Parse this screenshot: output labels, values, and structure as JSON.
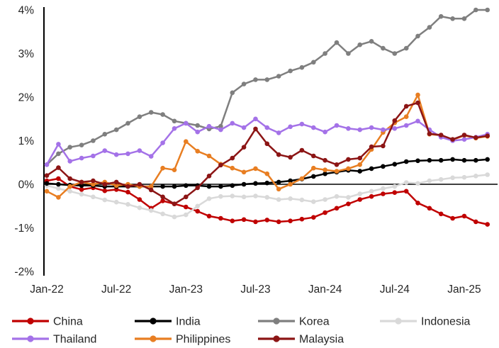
{
  "chart_data": {
    "type": "line",
    "title": "",
    "y_axis": {
      "unit": "%",
      "min": -2,
      "max": 4,
      "tick_values": [
        4,
        3,
        2,
        1,
        0,
        -1,
        -2
      ],
      "tick_labels": [
        "4%",
        "3%",
        "2%",
        "1%",
        "0%",
        "-1%",
        "-2%"
      ],
      "grid": "off",
      "zero_line": true
    },
    "x_axis": {
      "tick_labels": [
        "Jan-22",
        "Jul-22",
        "Jan-23",
        "Jul-23",
        "Jan-24",
        "Jul-24",
        "Jan-25"
      ],
      "tick_month_indices": [
        0,
        6,
        12,
        18,
        24,
        30,
        36
      ],
      "months": [
        "Jan-22",
        "Feb-22",
        "Mar-22",
        "Apr-22",
        "May-22",
        "Jun-22",
        "Jul-22",
        "Aug-22",
        "Sep-22",
        "Oct-22",
        "Nov-22",
        "Dec-22",
        "Jan-23",
        "Feb-23",
        "Mar-23",
        "Apr-23",
        "May-23",
        "Jun-23",
        "Jul-23",
        "Aug-23",
        "Sep-23",
        "Oct-23",
        "Nov-23",
        "Dec-23",
        "Jan-24",
        "Feb-24",
        "Mar-24",
        "Apr-24",
        "May-24",
        "Jun-24",
        "Jul-24",
        "Aug-24",
        "Sep-24",
        "Oct-24",
        "Nov-24",
        "Dec-24",
        "Jan-25",
        "Feb-25",
        "Mar-25"
      ]
    },
    "legend": {
      "position": "bottom",
      "rows": [
        [
          "China",
          "India",
          "Korea",
          "Indonesia"
        ],
        [
          "Thailand",
          "Philippines",
          "Malaysia"
        ]
      ]
    },
    "draw_order": [
      "China",
      "Indonesia",
      "India",
      "Philippines",
      "Korea",
      "Thailand",
      "Malaysia"
    ],
    "series": [
      {
        "name": "China",
        "color": "#c00000",
        "values": [
          0.08,
          0.13,
          -0.05,
          -0.12,
          -0.08,
          -0.15,
          -0.12,
          -0.18,
          -0.35,
          -0.55,
          -0.38,
          -0.45,
          -0.52,
          -0.62,
          -0.73,
          -0.78,
          -0.84,
          -0.81,
          -0.86,
          -0.82,
          -0.86,
          -0.84,
          -0.8,
          -0.76,
          -0.65,
          -0.55,
          -0.45,
          -0.35,
          -0.28,
          -0.22,
          -0.19,
          -0.16,
          -0.43,
          -0.55,
          -0.68,
          -0.78,
          -0.73,
          -0.86,
          -0.92
        ]
      },
      {
        "name": "India",
        "color": "#000000",
        "values": [
          0.02,
          0.0,
          -0.02,
          -0.03,
          -0.03,
          -0.05,
          -0.05,
          -0.05,
          -0.05,
          -0.05,
          -0.05,
          -0.05,
          -0.03,
          -0.03,
          -0.05,
          -0.05,
          -0.03,
          0.0,
          0.02,
          0.03,
          0.05,
          0.08,
          0.12,
          0.18,
          0.24,
          0.28,
          0.32,
          0.3,
          0.36,
          0.41,
          0.46,
          0.52,
          0.54,
          0.55,
          0.55,
          0.57,
          0.55,
          0.55,
          0.57
        ]
      },
      {
        "name": "Korea",
        "color": "#7f7f7f",
        "values": [
          0.45,
          0.7,
          0.85,
          0.9,
          1.0,
          1.15,
          1.25,
          1.4,
          1.55,
          1.65,
          1.6,
          1.45,
          1.4,
          1.35,
          1.27,
          1.33,
          2.1,
          2.3,
          2.4,
          2.4,
          2.48,
          2.6,
          2.68,
          2.8,
          3.0,
          3.25,
          3.0,
          3.2,
          3.28,
          3.12,
          3.0,
          3.12,
          3.4,
          3.6,
          3.85,
          3.8,
          3.8,
          4.0,
          4.0
        ]
      },
      {
        "name": "Indonesia",
        "color": "#d9d9d9",
        "values": [
          -0.03,
          -0.1,
          -0.16,
          -0.23,
          -0.29,
          -0.36,
          -0.41,
          -0.46,
          -0.54,
          -0.6,
          -0.68,
          -0.75,
          -0.7,
          -0.5,
          -0.33,
          -0.28,
          -0.27,
          -0.29,
          -0.27,
          -0.3,
          -0.35,
          -0.33,
          -0.36,
          -0.4,
          -0.35,
          -0.28,
          -0.3,
          -0.22,
          -0.16,
          -0.1,
          -0.05,
          0.04,
          0.02,
          0.08,
          0.11,
          0.15,
          0.16,
          0.19,
          0.22
        ]
      },
      {
        "name": "Thailand",
        "color": "#a472e8",
        "values": [
          0.45,
          0.92,
          0.53,
          0.6,
          0.65,
          0.77,
          0.68,
          0.7,
          0.77,
          0.64,
          0.95,
          1.28,
          1.4,
          1.2,
          1.33,
          1.25,
          1.4,
          1.3,
          1.5,
          1.3,
          1.18,
          1.32,
          1.38,
          1.3,
          1.2,
          1.35,
          1.28,
          1.25,
          1.3,
          1.25,
          1.28,
          1.35,
          1.45,
          1.25,
          1.08,
          1.0,
          1.03,
          1.08,
          1.15
        ]
      },
      {
        "name": "Philippines",
        "color": "#e87e22",
        "values": [
          -0.16,
          -0.3,
          -0.05,
          0.05,
          0.0,
          0.05,
          -0.03,
          0.0,
          -0.05,
          -0.05,
          0.37,
          0.33,
          0.98,
          0.76,
          0.65,
          0.46,
          0.37,
          0.28,
          0.36,
          0.24,
          -0.11,
          0.0,
          0.13,
          0.37,
          0.33,
          0.3,
          0.36,
          0.45,
          0.8,
          1.19,
          1.41,
          1.55,
          2.05,
          1.15,
          1.12,
          1.02,
          1.12,
          1.06,
          1.1
        ]
      },
      {
        "name": "Malaysia",
        "color": "#8c1515",
        "values": [
          0.2,
          0.38,
          0.13,
          0.05,
          0.08,
          0.0,
          0.05,
          -0.05,
          0.0,
          -0.13,
          -0.29,
          -0.45,
          -0.29,
          -0.08,
          0.19,
          0.44,
          0.6,
          0.85,
          1.27,
          0.93,
          0.68,
          0.62,
          0.78,
          0.65,
          0.55,
          0.45,
          0.57,
          0.6,
          0.86,
          0.88,
          1.46,
          1.79,
          1.87,
          1.16,
          1.13,
          1.03,
          1.13,
          1.07,
          1.11
        ]
      }
    ],
    "style": {
      "marker": "circle",
      "marker_radius": 3.3,
      "line_width": 2.5,
      "axis_color": "#000000",
      "label_color": "#262626"
    }
  }
}
